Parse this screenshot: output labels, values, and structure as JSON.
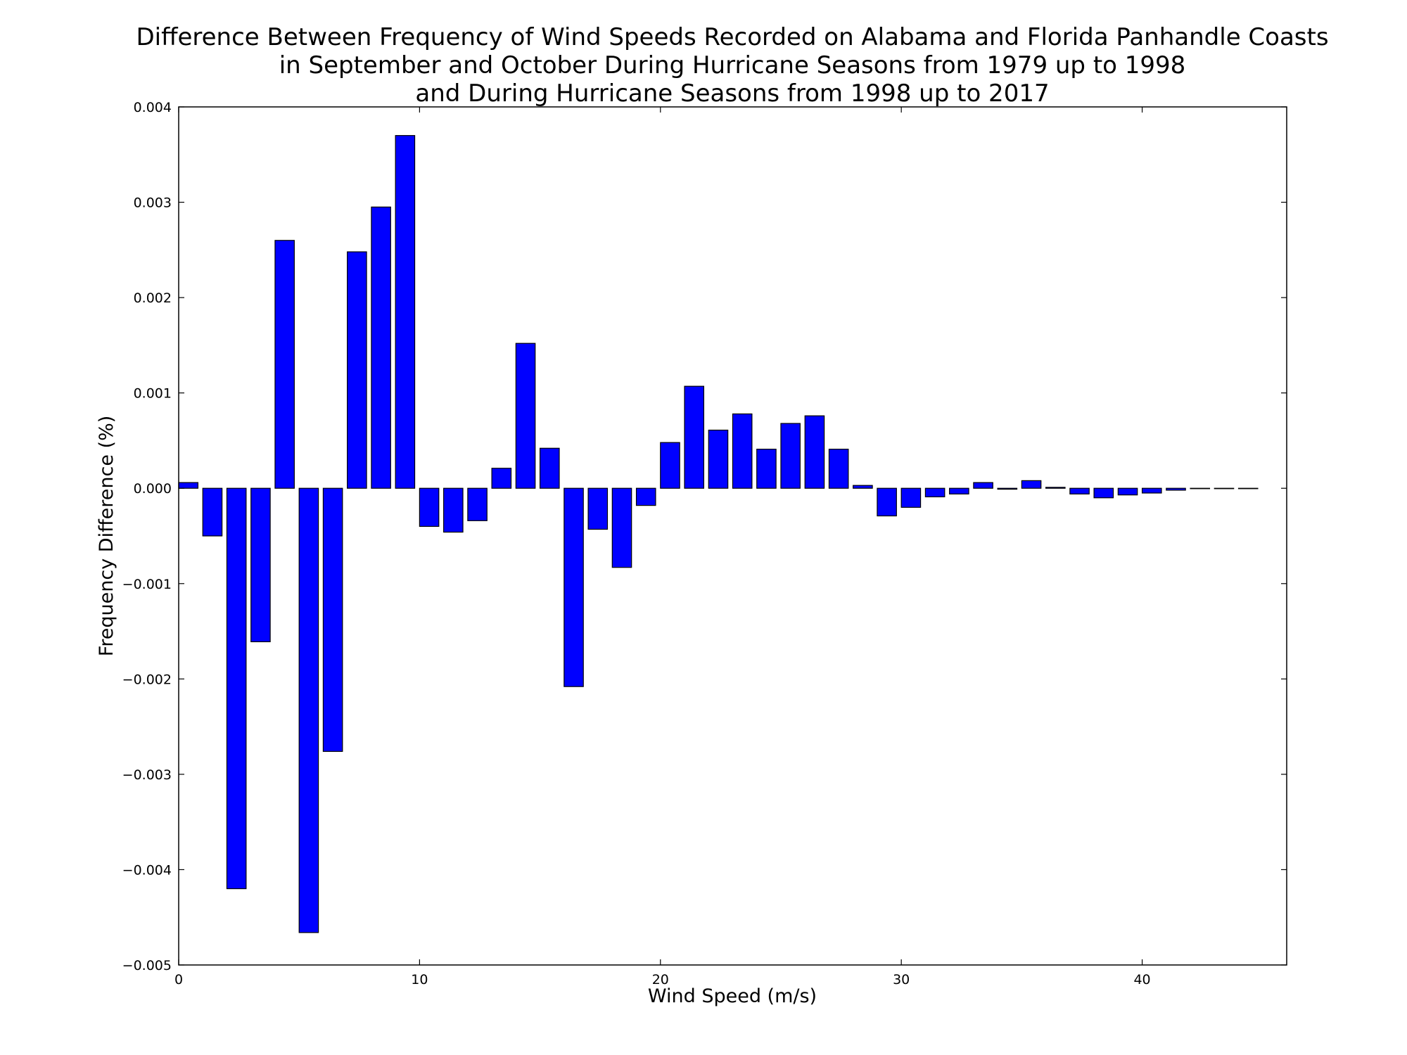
{
  "chart_data": {
    "type": "bar",
    "title_lines": [
      "Difference Between Frequency of Wind Speeds Recorded on Alabama and Florida Panhandle Coasts",
      "in September and October During Hurricane Seasons from 1979 up to 1998",
      "and During Hurricane Seasons from 1998 up to 2017"
    ],
    "xlabel": "Wind Speed (m/s)",
    "ylabel": "Frequency Difference (%)",
    "xlim": [
      0,
      46
    ],
    "ylim": [
      -0.005,
      0.004
    ],
    "bar_width": 0.8,
    "x_ticks": [
      0,
      10,
      20,
      30,
      40
    ],
    "x_tick_labels": [
      "0",
      "10",
      "20",
      "30",
      "40"
    ],
    "y_ticks": [
      -0.005,
      -0.004,
      -0.003,
      -0.002,
      -0.001,
      0.0,
      0.001,
      0.002,
      0.003,
      0.004
    ],
    "y_tick_labels": [
      "−0.005",
      "−0.004",
      "−0.003",
      "−0.002",
      "−0.001",
      "0.000",
      "0.001",
      "0.002",
      "0.003",
      "0.004"
    ],
    "bar_color": "#0000ff",
    "grid": false,
    "x": [
      0,
      1,
      2,
      3,
      4,
      5,
      6,
      7,
      8,
      9,
      10,
      11,
      12,
      13,
      14,
      15,
      16,
      17,
      18,
      19,
      20,
      21,
      22,
      23,
      24,
      25,
      26,
      27,
      28,
      29,
      30,
      31,
      32,
      33,
      34,
      35,
      36,
      37,
      38,
      39,
      40,
      41,
      42,
      43,
      44
    ],
    "values": [
      6e-05,
      -0.0005,
      -0.0042,
      -0.00161,
      0.0026,
      -0.00466,
      -0.00276,
      0.00248,
      0.00295,
      0.0037,
      -0.0004,
      -0.00046,
      -0.00034,
      0.00021,
      0.00152,
      0.00042,
      -0.00208,
      -0.00043,
      -0.00083,
      -0.00018,
      0.00048,
      0.00107,
      0.00061,
      0.00078,
      0.00041,
      0.00068,
      0.00076,
      0.00041,
      3e-05,
      -0.00029,
      -0.0002,
      -9e-05,
      -6e-05,
      6e-05,
      -1e-05,
      8e-05,
      1e-05,
      -6e-05,
      -0.0001,
      -7e-05,
      -5e-05,
      -2e-05,
      0.0,
      0.0,
      0.0
    ]
  }
}
